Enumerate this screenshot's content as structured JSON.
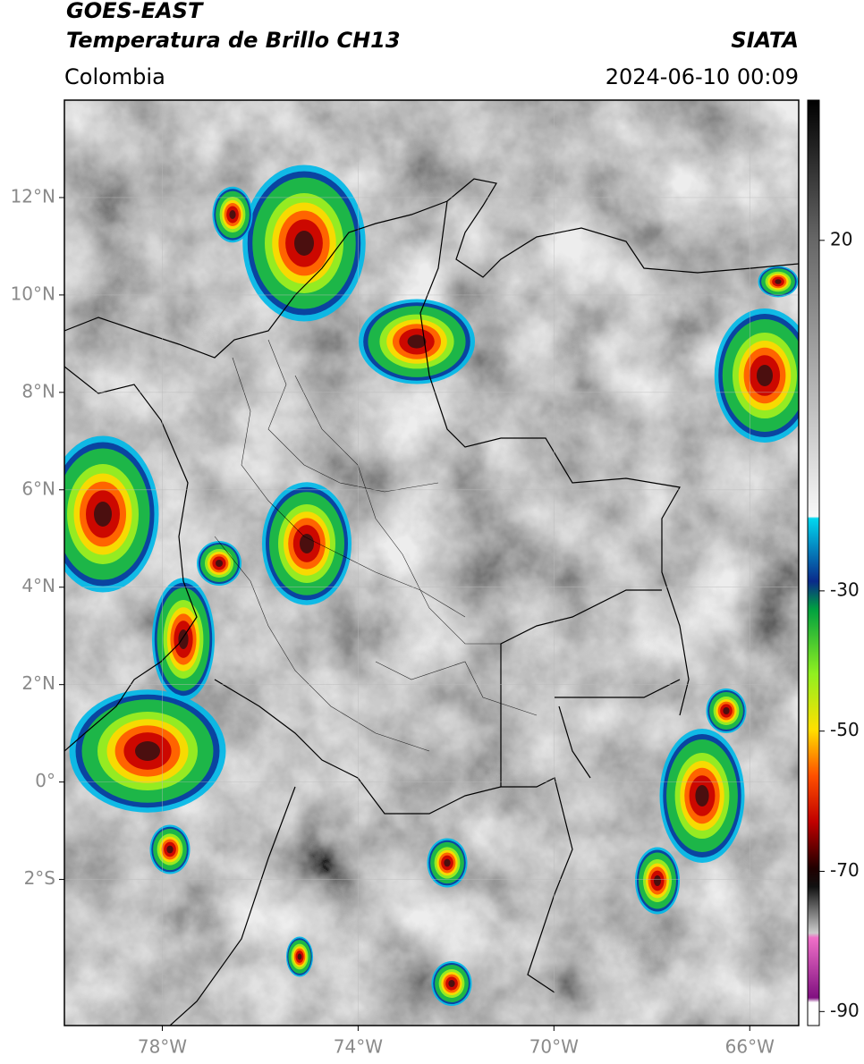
{
  "header": {
    "title": "GOES-EAST",
    "subtitle": "Temperatura de Brillo CH13",
    "source": "SIATA",
    "region": "Colombia",
    "datetime": "2024-06-10 00:09"
  },
  "map": {
    "xlim": [
      -80,
      -65
    ],
    "ylim": [
      -5,
      14
    ],
    "grid": true,
    "xticks": [
      {
        "value": -78,
        "label": "78°W"
      },
      {
        "value": -74,
        "label": "74°W"
      },
      {
        "value": -70,
        "label": "70°W"
      },
      {
        "value": -66,
        "label": "66°W"
      }
    ],
    "yticks": [
      {
        "value": 12,
        "label": "12°N"
      },
      {
        "value": 10,
        "label": "10°N"
      },
      {
        "value": 8,
        "label": "8°N"
      },
      {
        "value": 6,
        "label": "6°N"
      },
      {
        "value": 4,
        "label": "4°N"
      },
      {
        "value": 2,
        "label": "2°N"
      },
      {
        "value": 0,
        "label": "0°"
      },
      {
        "value": -2,
        "label": "2°S"
      }
    ]
  },
  "colorbar": {
    "clim": [
      -92,
      40
    ],
    "ticks": [
      20,
      -30,
      -50,
      -70,
      -90
    ]
  }
}
